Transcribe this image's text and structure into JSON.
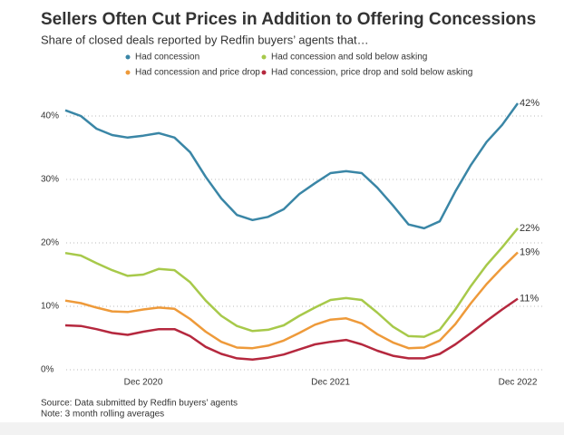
{
  "chart_data": {
    "type": "line",
    "title": "Sellers Often Cut Prices in Addition to Offering Concessions",
    "subtitle": "Share of closed deals reported by Redfin buyers’ agents that…",
    "source": "Source: Data submitted by Redfin buyers’ agents",
    "note": "Note: 3 month rolling averages",
    "categories": [
      null,
      null,
      null,
      null,
      null,
      "Dec 2020",
      null,
      null,
      null,
      null,
      null,
      null,
      null,
      null,
      null,
      null,
      null,
      "Dec 2021",
      null,
      null,
      null,
      null,
      null,
      null,
      null,
      null,
      null,
      null,
      null,
      "Dec 2022"
    ],
    "ylim": [
      0,
      42
    ],
    "yticks": [
      {
        "value": 0,
        "label": "0%"
      },
      {
        "value": 10,
        "label": "10%"
      },
      {
        "value": 20,
        "label": "20%"
      },
      {
        "value": 30,
        "label": "30%"
      },
      {
        "value": 40,
        "label": "40%"
      }
    ],
    "grid": true,
    "series": [
      {
        "name": "Had concession",
        "color": "#3a86a6",
        "values": [
          40.9,
          40,
          38,
          37,
          36.6,
          36.9,
          37.3,
          36.6,
          34.3,
          30.4,
          27,
          24.4,
          23.6,
          24.1,
          25.3,
          27.7,
          29.4,
          31,
          31.3,
          31,
          28.7,
          25.9,
          22.9,
          22.3,
          23.4,
          28.1,
          32.3,
          35.9,
          38.6,
          42
        ],
        "value_labels": [
          null,
          null,
          null,
          null,
          null,
          null,
          null,
          null,
          null,
          null,
          null,
          null,
          null,
          null,
          null,
          null,
          null,
          null,
          null,
          null,
          null,
          null,
          null,
          null,
          null,
          null,
          null,
          null,
          null,
          "42%"
        ]
      },
      {
        "name": "Had concession and sold below asking",
        "color": "#a7c94a",
        "values": [
          18.4,
          18,
          16.8,
          15.7,
          14.8,
          15,
          15.9,
          15.7,
          13.8,
          10.9,
          8.5,
          6.9,
          6.1,
          6.3,
          7,
          8.5,
          9.8,
          11,
          11.3,
          11,
          9,
          6.8,
          5.3,
          5.2,
          6.3,
          9.5,
          13.2,
          16.5,
          19.3,
          22.3
        ],
        "value_labels": [
          null,
          null,
          null,
          null,
          null,
          null,
          null,
          null,
          null,
          null,
          null,
          null,
          null,
          null,
          null,
          null,
          null,
          null,
          null,
          null,
          null,
          null,
          null,
          null,
          null,
          null,
          null,
          null,
          null,
          "22%"
        ]
      },
      {
        "name": "Had concession and price drop",
        "color": "#ee9a3a",
        "values": [
          10.9,
          10.5,
          9.8,
          9.2,
          9.1,
          9.5,
          9.8,
          9.6,
          8,
          6,
          4.4,
          3.5,
          3.4,
          3.8,
          4.6,
          5.8,
          7.1,
          7.9,
          8.1,
          7.3,
          5.6,
          4.3,
          3.4,
          3.5,
          4.6,
          7.2,
          10.5,
          13.5,
          16.1,
          18.5
        ],
        "value_labels": [
          null,
          null,
          null,
          null,
          null,
          null,
          null,
          null,
          null,
          null,
          null,
          null,
          null,
          null,
          null,
          null,
          null,
          null,
          null,
          null,
          null,
          null,
          null,
          null,
          null,
          null,
          null,
          null,
          null,
          "19%"
        ]
      },
      {
        "name": "Had concession, price drop and sold below asking",
        "color": "#b5283e",
        "values": [
          7,
          6.9,
          6.4,
          5.8,
          5.5,
          6,
          6.4,
          6.4,
          5.3,
          3.6,
          2.5,
          1.8,
          1.6,
          1.9,
          2.4,
          3.2,
          4,
          4.4,
          4.7,
          4,
          3,
          2.2,
          1.8,
          1.8,
          2.5,
          4,
          5.8,
          7.7,
          9.5,
          11.2
        ],
        "value_labels": [
          null,
          null,
          null,
          null,
          null,
          null,
          null,
          null,
          null,
          null,
          null,
          null,
          null,
          null,
          null,
          null,
          null,
          null,
          null,
          null,
          null,
          null,
          null,
          null,
          null,
          null,
          null,
          null,
          null,
          "11%"
        ]
      }
    ]
  }
}
